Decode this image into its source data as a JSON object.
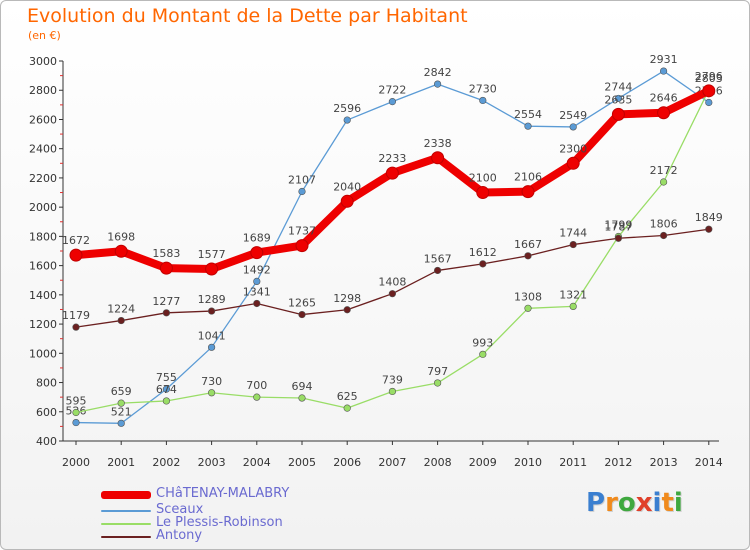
{
  "header": {
    "title": "Evolution du Montant de la Dette par Habitant",
    "subtitle": "(en €)"
  },
  "logo": {
    "text": "Proxiti",
    "letters": [
      "P",
      "r",
      "o",
      "x",
      "i",
      "t",
      "i"
    ],
    "colors": [
      "#3a7fd0",
      "#f08a1c",
      "#3fa83f",
      "#e0402a",
      "#3a7fd0",
      "#f08a1c",
      "#3fa83f"
    ]
  },
  "chart_data": {
    "type": "line",
    "title": "Evolution du Montant de la Dette par Habitant",
    "subtitle": "(en €)",
    "x": [
      "2000",
      "2001",
      "2002",
      "2003",
      "2004",
      "2005",
      "2006",
      "2007",
      "2008",
      "2009",
      "2010",
      "2011",
      "2012",
      "2013",
      "2014"
    ],
    "ylim": [
      400,
      3000
    ],
    "yticks": [
      400,
      600,
      800,
      1000,
      1200,
      1400,
      1600,
      1800,
      2000,
      2200,
      2400,
      2600,
      2800,
      3000
    ],
    "grid": false,
    "legend_position": "bottom-left",
    "series": [
      {
        "name": "CHâTENAY-MALABRY",
        "color": "#ee0000",
        "emphasis": true,
        "values": [
          1672,
          1698,
          1583,
          1577,
          1689,
          1737,
          2040,
          2233,
          2338,
          2100,
          2106,
          2300,
          2635,
          2646,
          2796
        ]
      },
      {
        "name": "Sceaux",
        "color": "#5b9bd5",
        "emphasis": false,
        "values": [
          526,
          521,
          755,
          1041,
          1492,
          2107,
          2596,
          2722,
          2842,
          2730,
          2554,
          2549,
          2744,
          2931,
          2716
        ]
      },
      {
        "name": "Le Plessis-Robinson",
        "color": "#99dd66",
        "emphasis": false,
        "values": [
          595,
          659,
          674,
          730,
          700,
          694,
          625,
          739,
          797,
          993,
          1308,
          1321,
          1799,
          2172,
          2803
        ]
      },
      {
        "name": "Antony",
        "color": "#6b2020",
        "emphasis": false,
        "values": [
          1179,
          1224,
          1277,
          1289,
          1341,
          1265,
          1298,
          1408,
          1567,
          1612,
          1667,
          1744,
          1787,
          1806,
          1849
        ]
      }
    ]
  }
}
